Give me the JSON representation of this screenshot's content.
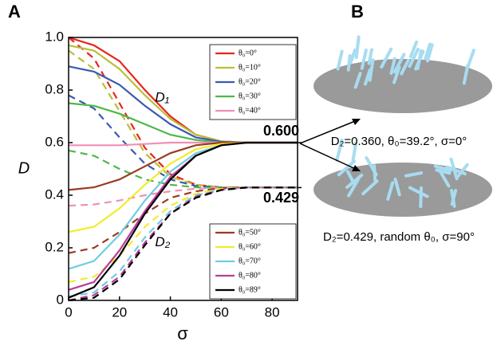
{
  "panel_a_label": "A",
  "panel_b_label": "B",
  "chart_data": {
    "type": "line",
    "x_label": "σ",
    "y_label": "D",
    "xlim": [
      0,
      90
    ],
    "xticks": [
      0,
      20,
      40,
      60,
      80
    ],
    "ylim": [
      0,
      1
    ],
    "yticks": [
      0,
      0.2,
      0.4,
      0.6,
      0.8,
      {
        "value": 1,
        "label": "1.0"
      }
    ],
    "x": [
      0,
      10,
      20,
      30,
      40,
      50,
      60,
      70,
      80,
      90
    ],
    "series": [
      {
        "name": "θ₀=0°",
        "color": "#e8251f",
        "D1_values": [
          1.0,
          0.97,
          0.91,
          0.8,
          0.7,
          0.63,
          0.605,
          0.6,
          0.6,
          0.6
        ],
        "D2_values": [
          1.0,
          0.92,
          0.75,
          0.58,
          0.48,
          0.44,
          0.43,
          0.429,
          0.429,
          0.429
        ]
      },
      {
        "name": "θ₀=10°",
        "color": "#bdbd3a",
        "D1_values": [
          0.97,
          0.95,
          0.88,
          0.78,
          0.69,
          0.63,
          0.605,
          0.6,
          0.6,
          0.6
        ],
        "D2_values": [
          0.95,
          0.88,
          0.72,
          0.56,
          0.47,
          0.44,
          0.43,
          0.429,
          0.429,
          0.429
        ]
      },
      {
        "name": "θ₀=20°",
        "color": "#3a5ab0",
        "D1_values": [
          0.89,
          0.87,
          0.82,
          0.74,
          0.67,
          0.62,
          0.603,
          0.6,
          0.6,
          0.6
        ],
        "D2_values": [
          0.78,
          0.73,
          0.62,
          0.52,
          0.46,
          0.435,
          0.43,
          0.429,
          0.429,
          0.429
        ]
      },
      {
        "name": "θ₀=30°",
        "color": "#4cb848",
        "D1_values": [
          0.75,
          0.74,
          0.71,
          0.67,
          0.63,
          0.61,
          0.6,
          0.6,
          0.6,
          0.6
        ],
        "D2_values": [
          0.57,
          0.55,
          0.5,
          0.46,
          0.44,
          0.43,
          0.429,
          0.429,
          0.429,
          0.429
        ]
      },
      {
        "name": "θ₀=40°",
        "color": "#f08fb8",
        "D1_values": [
          0.59,
          0.59,
          0.59,
          0.595,
          0.6,
          0.6,
          0.6,
          0.6,
          0.6,
          0.6
        ],
        "D2_values": [
          0.36,
          0.365,
          0.38,
          0.4,
          0.415,
          0.425,
          0.429,
          0.429,
          0.429,
          0.429
        ]
      },
      {
        "name": "θ₀=50°",
        "color": "#9a3b22",
        "D1_values": [
          0.42,
          0.43,
          0.46,
          0.51,
          0.56,
          0.59,
          0.6,
          0.6,
          0.6,
          0.6
        ],
        "D2_values": [
          0.18,
          0.2,
          0.26,
          0.33,
          0.39,
          0.415,
          0.427,
          0.429,
          0.429,
          0.429
        ]
      },
      {
        "name": "θ₀=60°",
        "color": "#f2ec2a",
        "D1_values": [
          0.26,
          0.28,
          0.35,
          0.44,
          0.52,
          0.575,
          0.595,
          0.6,
          0.6,
          0.6
        ],
        "D2_values": [
          0.07,
          0.09,
          0.17,
          0.28,
          0.36,
          0.405,
          0.425,
          0.429,
          0.429,
          0.429
        ]
      },
      {
        "name": "θ₀=70°",
        "color": "#6fcde0",
        "D1_values": [
          0.12,
          0.15,
          0.25,
          0.38,
          0.49,
          0.56,
          0.59,
          0.6,
          0.6,
          0.6
        ],
        "D2_values": [
          0.015,
          0.03,
          0.11,
          0.24,
          0.34,
          0.4,
          0.42,
          0.429,
          0.429,
          0.429
        ]
      },
      {
        "name": "θ₀=80°",
        "color": "#b83c9a",
        "D1_values": [
          0.04,
          0.07,
          0.19,
          0.34,
          0.47,
          0.55,
          0.59,
          0.6,
          0.6,
          0.6
        ],
        "D2_values": [
          0.0,
          0.02,
          0.09,
          0.22,
          0.33,
          0.395,
          0.42,
          0.429,
          0.429,
          0.429
        ]
      },
      {
        "name": "θ₀=89°",
        "color": "#000000",
        "D1_values": [
          0.01,
          0.05,
          0.17,
          0.33,
          0.46,
          0.55,
          0.59,
          0.6,
          0.6,
          0.6
        ],
        "D2_values": [
          0.0,
          0.01,
          0.08,
          0.21,
          0.33,
          0.39,
          0.42,
          0.429,
          0.429,
          0.429
        ]
      }
    ],
    "annotations": {
      "D1": "D₁",
      "D2": "D₂",
      "limit_D1": {
        "value": 0.6,
        "label": "0.600"
      },
      "limit_D2": {
        "value": 0.429,
        "label": "0.429"
      }
    }
  },
  "panel_b": {
    "caption_top": "D₂=0.360, θ₀=39.2°, σ=0°",
    "caption_bottom": "D₂=0.429, random θ₀, σ=90°"
  }
}
